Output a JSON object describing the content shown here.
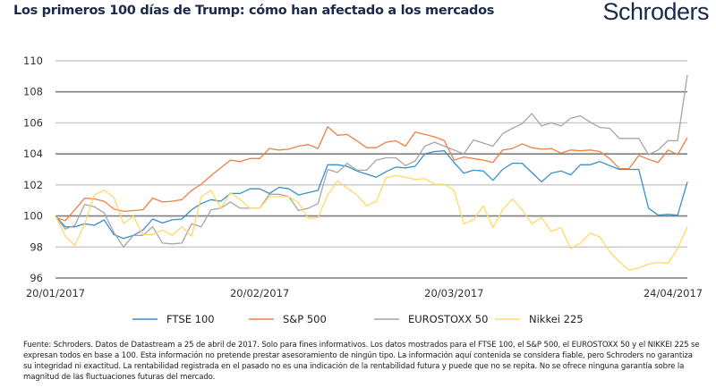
{
  "header": {
    "title": "Los primeros 100 días de Trump: cómo han afectado a los mercados",
    "logo": "Schroders"
  },
  "footnote": "Fuente: Schroders. Datos de Datastream a 25 de abril de 2017. Solo para fines informativos. Los datos mostrados para el FTSE 100, el S&P 500, el EUROSTOXX 50 y el NIKKEI 225 se expresan todos en base a 100. Esta información no pretende prestar asesoramiento de ningún tipo. La información aquí contenida se considera fiable, pero Schroders no garantiza su integridad ni exactitud. La rentabilidad registrada en el pasado no es una indicación de la rentabilidad futura y puede que no se repita. No se ofrece ninguna garantía sobre la magnitud de las fluctuaciones futuras del mercado.",
  "chart_data": {
    "type": "line",
    "title": "",
    "xlabel": "",
    "ylabel": "",
    "ylim": [
      96,
      110
    ],
    "yticks": [
      96,
      98,
      100,
      102,
      104,
      106,
      108,
      110
    ],
    "grid": true,
    "legend_position": "bottom",
    "xticks": [
      {
        "label": "20/01/2017",
        "index": 0
      },
      {
        "label": "20/02/2017",
        "index": 21
      },
      {
        "label": "20/03/2017",
        "index": 41
      },
      {
        "label": "24/04/2017",
        "index": 65
      }
    ],
    "series": [
      {
        "name": "FTSE 100",
        "color": "#3a8fc8",
        "values": [
          100,
          99.3,
          99.3,
          99.5,
          99.4,
          99.75,
          98.8,
          98.55,
          98.75,
          99.1,
          99.8,
          99.55,
          99.75,
          99.8,
          100.4,
          100.8,
          101.05,
          100.95,
          101.45,
          101.45,
          101.75,
          101.75,
          101.45,
          101.85,
          101.75,
          101.35,
          101.5,
          101.65,
          103.3,
          103.3,
          103.2,
          102.9,
          102.7,
          102.5,
          102.85,
          103.15,
          103.1,
          103.2,
          104,
          104.15,
          104.2,
          103.45,
          102.75,
          102.95,
          102.9,
          102.3,
          103,
          103.4,
          103.4,
          102.8,
          102.2,
          102.75,
          102.9,
          102.65,
          103.3,
          103.3,
          103.5,
          103.25,
          103,
          103,
          103,
          100.5,
          100.05,
          100.1,
          100.05,
          102.2
        ]
      },
      {
        "name": "S&P 500",
        "color": "#f07f45",
        "values": [
          99.9,
          99.7,
          100.4,
          101.15,
          101.1,
          100.95,
          100.45,
          100.3,
          100.35,
          100.4,
          101.15,
          100.9,
          100.95,
          101.05,
          101.65,
          102.05,
          102.6,
          103.1,
          103.6,
          103.5,
          103.7,
          103.7,
          104.35,
          104.25,
          104.3,
          104.5,
          104.6,
          104.35,
          105.75,
          105.2,
          105.25,
          104.85,
          104.4,
          104.4,
          104.75,
          104.85,
          104.5,
          105.4,
          105.25,
          105.1,
          104.85,
          103.6,
          103.8,
          103.7,
          103.6,
          103.45,
          104.25,
          104.35,
          104.65,
          104.4,
          104.3,
          104.35,
          104.05,
          104.25,
          104.2,
          104.25,
          104.15,
          103.7,
          103.05,
          103.05,
          103.9,
          103.65,
          103.45,
          104.25,
          103.95,
          105.05
        ]
      },
      {
        "name": "EUROSTOXX 50",
        "color": "#a6a6a6",
        "values": [
          100,
          99.15,
          99.4,
          100.75,
          100.6,
          100.2,
          98.95,
          98,
          98.75,
          98.75,
          99.3,
          98.25,
          98.2,
          98.25,
          99.5,
          99.3,
          100.4,
          100.5,
          100.9,
          100.5,
          100.5,
          100.5,
          101.4,
          101.4,
          101.25,
          100.35,
          100.5,
          100.8,
          103,
          102.8,
          103.4,
          102.95,
          102.95,
          103.6,
          103.75,
          103.75,
          103.25,
          103.55,
          104.5,
          104.75,
          104.5,
          104.25,
          104,
          104.9,
          104.7,
          104.5,
          105.3,
          105.65,
          105.95,
          106.6,
          105.8,
          106,
          105.8,
          106.3,
          106.45,
          106.05,
          105.7,
          105.65,
          105,
          105,
          105,
          103.95,
          104.25,
          104.85,
          104.85,
          109.1
        ]
      },
      {
        "name": "Nikkei 225",
        "color": "#ffd966",
        "values": [
          100,
          98.7,
          98.1,
          99.5,
          101.35,
          101.65,
          101.2,
          99.5,
          100,
          98.8,
          98.8,
          99.1,
          98.75,
          99.3,
          98.7,
          101.25,
          101.65,
          100.5,
          101.5,
          101.05,
          100.5,
          100.5,
          101.25,
          101.25,
          101.25,
          100.85,
          99.85,
          99.9,
          101.35,
          102.25,
          101.8,
          101.35,
          100.65,
          100.95,
          102.45,
          102.6,
          102.5,
          102.35,
          102.4,
          102.05,
          102.05,
          101.65,
          99.5,
          99.75,
          100.65,
          99.25,
          100.4,
          101.1,
          100.4,
          99.5,
          99.9,
          99,
          99.25,
          97.9,
          98.25,
          98.9,
          98.65,
          97.7,
          97.05,
          96.5,
          96.65,
          96.9,
          97,
          96.95,
          97.9,
          99.3
        ]
      }
    ]
  }
}
